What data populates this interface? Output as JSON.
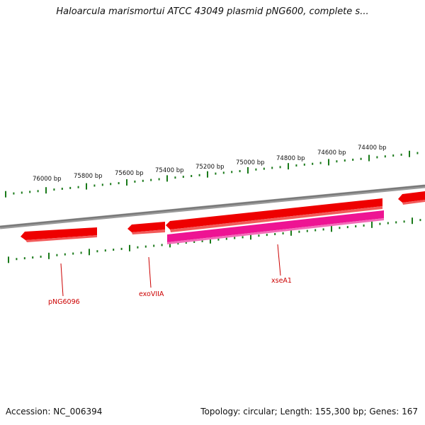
{
  "header": {
    "title": "Haloarcula marismortui ATCC 43049 plasmid pNG600, complete s..."
  },
  "footer": {
    "accession": "Accession: NC_006394",
    "summary": "Topology: circular; Length: 155,300 bp; Genes: 167"
  },
  "map": {
    "scale_labels": [
      "76000 bp",
      "75800 bp",
      "75600 bp",
      "75400 bp",
      "75200 bp",
      "75000 bp",
      "74800 bp",
      "74600 bp",
      "74400 bp"
    ],
    "gene_labels": [
      "pNG6096",
      "exoVIIA",
      "xseA1"
    ],
    "colors": {
      "backbone": "#808080",
      "gene": "#ee0000",
      "gene_highlight": "#ee1493",
      "tick": "#1a7a1a",
      "label": "#cc0000"
    }
  }
}
